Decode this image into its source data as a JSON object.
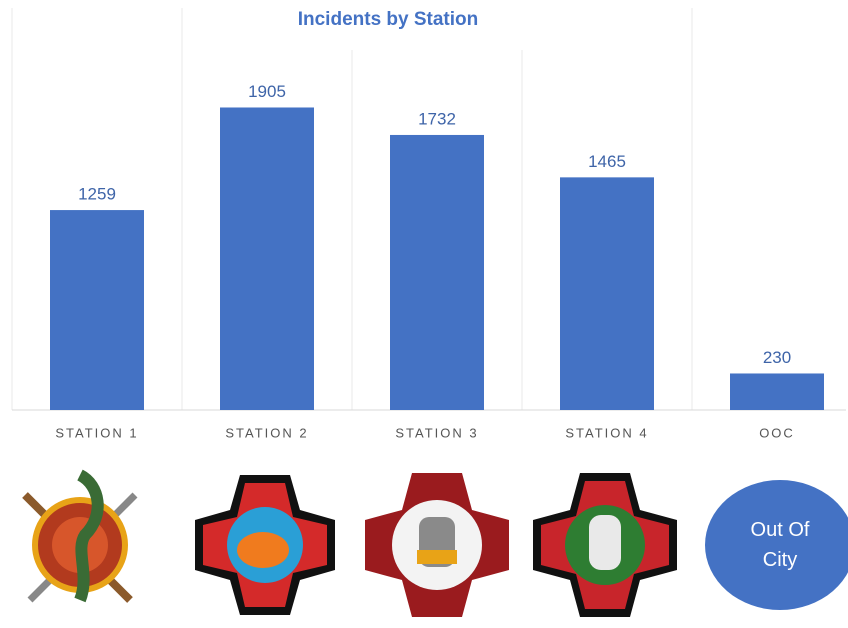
{
  "chart_data": {
    "type": "bar",
    "title": "Incidents by Station",
    "categories": [
      "STATION 1",
      "STATION 2",
      "STATION 3",
      "STATION 4",
      "OOC"
    ],
    "values": [
      1259,
      1905,
      1732,
      1465,
      230
    ],
    "color": "#4472c4",
    "ylim": [
      0,
      2500
    ]
  },
  "badge_text": "Out Of City"
}
